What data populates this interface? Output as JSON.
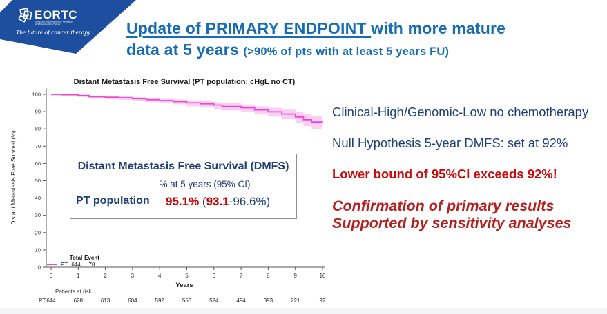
{
  "logo": {
    "name": "EORTC",
    "subtitle_line1": "European Organisation for Research",
    "subtitle_line2": "and Treatment of Cancer",
    "tagline": "The future of cancer therapy"
  },
  "slide_title": {
    "line1_underlined": "Update of PRIMARY ENDPOINT ",
    "line1_rest": "with more mature",
    "line2_big": "data at 5 years ",
    "line2_small": "(>90% of pts with at least 5 years FU)"
  },
  "right_panel": {
    "line1": "Clinical-High/Genomic-Low no chemotherapy",
    "line2": "Null Hypothesis 5-year DMFS: set at 92%",
    "line3": "Lower bound of 95%CI exceeds 92%!",
    "line4": "Confirmation of primary results",
    "line5": "Supported by sensitivity analyses"
  },
  "dmfs_box": {
    "title": "Distant Metastasis Free Survival (DMFS)",
    "subtitle": "% at 5 years (95% CI)",
    "row_label": "PT population",
    "value_main": "95.1%",
    "value_paren_open": " (",
    "value_lower": "93.1",
    "value_rest": "-96.6%)"
  },
  "colors": {
    "banner_blue": "#1d4f9e",
    "title_blue": "#176db3",
    "navy": "#1f4077",
    "red": "#cc0b0b",
    "dark_red": "#b3211f",
    "km_line": "#ee46cf",
    "km_band": "#f9d0f2"
  },
  "chart_data": {
    "type": "line",
    "title": "Distant Metastasis Free Survival (PT population: cHgL no CT)",
    "xlabel": "Years",
    "ylabel": "Distant Metastasis Free Survival (%)",
    "xlim": [
      0,
      10
    ],
    "ylim": [
      0,
      100
    ],
    "grid": false,
    "xticks": [
      0,
      1,
      2,
      3,
      4,
      5,
      6,
      7,
      8,
      9,
      10
    ],
    "yticks": [
      0,
      10,
      20,
      30,
      40,
      50,
      60,
      70,
      80,
      90,
      100
    ],
    "series": [
      {
        "name": "PT",
        "color": "#ee46cf",
        "band_color": "#f9d0f2",
        "points_format": [
          "year",
          "dmfs_pct",
          "ci_lower",
          "ci_upper"
        ],
        "points": [
          [
            0,
            100,
            99.3,
            100
          ],
          [
            0.4,
            99.8,
            99.0,
            100
          ],
          [
            1,
            99.3,
            98.4,
            99.8
          ],
          [
            1.4,
            98.6,
            97.6,
            99.3
          ],
          [
            2,
            98.3,
            97.2,
            99.0
          ],
          [
            2.5,
            98.0,
            96.8,
            98.8
          ],
          [
            3,
            97.5,
            96.2,
            98.4
          ],
          [
            3.5,
            96.9,
            95.5,
            97.9
          ],
          [
            4,
            96.4,
            94.9,
            97.5
          ],
          [
            4.5,
            95.8,
            94.2,
            97.0
          ],
          [
            5,
            95.1,
            93.1,
            96.6
          ],
          [
            5.5,
            94.5,
            92.4,
            96.1
          ],
          [
            6,
            93.8,
            91.6,
            95.5
          ],
          [
            6.3,
            93.0,
            90.7,
            94.8
          ],
          [
            7,
            92.2,
            89.8,
            94.1
          ],
          [
            7.5,
            91.0,
            88.4,
            93.1
          ],
          [
            8,
            89.9,
            87.1,
            92.2
          ],
          [
            8.5,
            88.6,
            85.6,
            91.2
          ],
          [
            9,
            86.9,
            83.6,
            89.7
          ],
          [
            9.3,
            85.3,
            81.6,
            88.4
          ],
          [
            9.6,
            84.0,
            80.0,
            87.3
          ],
          [
            10,
            83.2,
            78.9,
            86.7
          ]
        ]
      }
    ],
    "legend": {
      "position": "bottom-left-inside",
      "columns": [
        "Total",
        "Event"
      ],
      "rows": [
        {
          "name": "PT",
          "total": "644",
          "event": "78"
        }
      ]
    },
    "risk_table": {
      "label": "Patients at risk",
      "rows": [
        {
          "name": "PT",
          "values": [
            "644",
            "628",
            "613",
            "604",
            "592",
            "563",
            "524",
            "494",
            "393",
            "221",
            "92"
          ]
        }
      ]
    }
  }
}
